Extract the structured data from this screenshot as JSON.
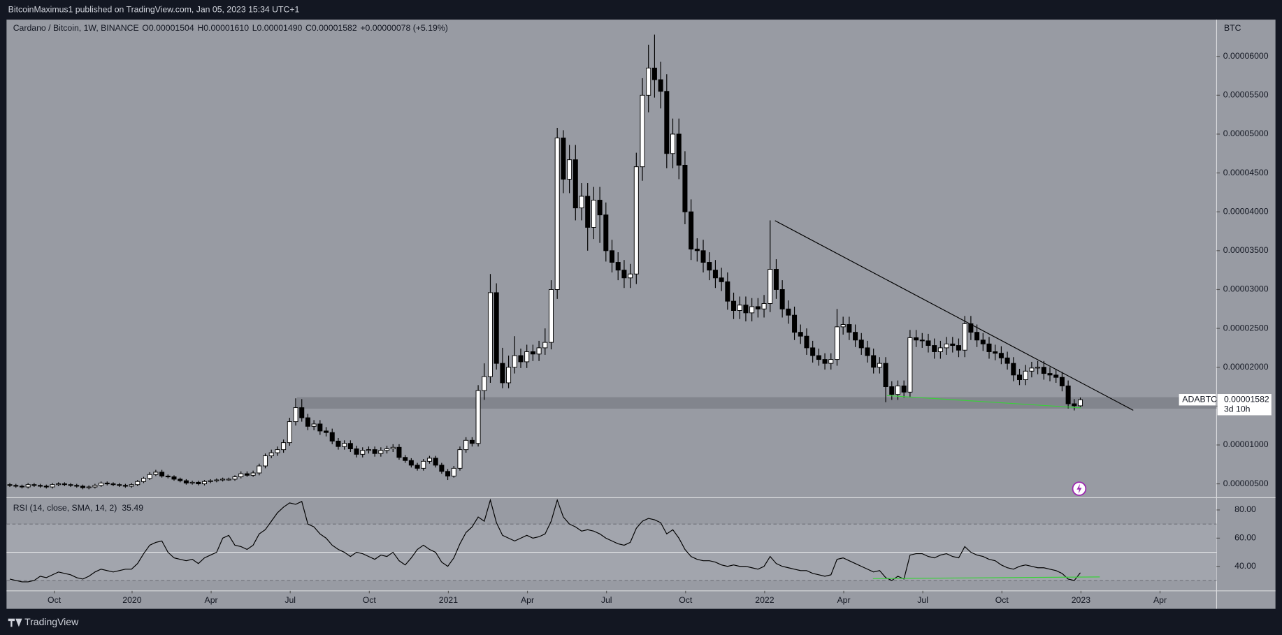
{
  "header": {
    "published": "BitcoinMaximus1 published on TradingView.com, Jan 05, 2023 15:34 UTC+1"
  },
  "footer": {
    "brand": "TradingView"
  },
  "chart_data": [
    {
      "type": "candlestick",
      "title": "Cardano / Bitcoin, 1W, BINANCE",
      "ohlc_legend": [
        {
          "label": "O",
          "value": "0.00001504"
        },
        {
          "label": "H",
          "value": "0.00001610"
        },
        {
          "label": "L",
          "value": "0.00001490"
        },
        {
          "label": "C",
          "value": "0.00001582"
        }
      ],
      "change": "+0.00000078 (+5.19%)",
      "unit": "BTC",
      "up_color": "#ffffff",
      "down_color": "#000000",
      "xlim": [
        -0.54,
        198.4
      ],
      "ylim": [
        3.32e-06,
        6.473e-05
      ],
      "yticks": [
        {
          "value": 5e-06,
          "label": "0.00000500"
        },
        {
          "value": 1e-05,
          "label": "0.00001000"
        },
        {
          "value": 1.5e-05,
          "label": "0.00001500"
        },
        {
          "value": 2e-05,
          "label": "0.00002000"
        },
        {
          "value": 2.5e-05,
          "label": "0.00002500"
        },
        {
          "value": 3e-05,
          "label": "0.00003000"
        },
        {
          "value": 3.5e-05,
          "label": "0.00003500"
        },
        {
          "value": 4e-05,
          "label": "0.00004000"
        },
        {
          "value": 4.5e-05,
          "label": "0.00004500"
        },
        {
          "value": 5e-05,
          "label": "0.00005000"
        },
        {
          "value": 5.5e-05,
          "label": "0.00005500"
        },
        {
          "value": 6e-05,
          "label": "0.00006000"
        }
      ],
      "open": [
        4.9e-06,
        4.8e-06,
        4.7e-06,
        4.6e-06,
        4.9e-06,
        4.8e-06,
        4.7e-06,
        4.6e-06,
        4.9e-06,
        5e-06,
        4.9e-06,
        4.8e-06,
        4.7e-06,
        4.5e-06,
        4.6e-06,
        4.8e-06,
        5.1e-06,
        5e-06,
        4.9e-06,
        4.8e-06,
        4.7e-06,
        4.9e-06,
        5.3e-06,
        5.7e-06,
        6.2e-06,
        6.5e-06,
        6e-06,
        5.9e-06,
        5.6e-06,
        5.4e-06,
        5.1e-06,
        5.2e-06,
        5e-06,
        5.3e-06,
        5.4e-06,
        5.5e-06,
        5.6e-06,
        5.6e-06,
        5.9e-06,
        6.3e-06,
        6.1e-06,
        6.4e-06,
        7.3e-06,
        8.6e-06,
        9e-06,
        9.4e-06,
        1.03e-05,
        1.3e-05,
        1.48e-05,
        1.35e-05,
        1.24e-05,
        1.27e-05,
        1.18e-05,
        1.16e-05,
        1.05e-05,
        9.8e-06,
        1.02e-05,
        9.5e-06,
        8.8e-06,
        9.3e-06,
        9.4e-06,
        8.9e-06,
        9.3e-06,
        9.5e-06,
        9.7e-06,
        8.4e-06,
        8e-06,
        7.4e-06,
        7e-06,
        7.9e-06,
        8.3e-06,
        7.4e-06,
        6.6e-06,
        6e-06,
        7e-06,
        9.4e-06,
        1.06e-05,
        1.02e-05,
        1.7e-05,
        1.88e-05,
        2.96e-05,
        2.05e-05,
        1.8e-05,
        2e-05,
        2.15e-05,
        2.07e-05,
        2.2e-05,
        2.17e-05,
        2.25e-05,
        2.32e-05,
        3e-05,
        4.95e-05,
        4.42e-05,
        4.67e-05,
        4.05e-05,
        4.2e-05,
        3.8e-05,
        4.15e-05,
        3.96e-05,
        3.5e-05,
        3.35e-05,
        3.25e-05,
        3.15e-05,
        3.2e-05,
        4.58e-05,
        5.5e-05,
        5.85e-05,
        5.7e-05,
        5.55e-05,
        4.75e-05,
        5e-05,
        4.6e-05,
        4e-05,
        3.52e-05,
        3.5e-05,
        3.35e-05,
        3.25e-05,
        3.15e-05,
        3.1e-05,
        2.85e-05,
        2.73e-05,
        2.8e-05,
        2.7e-05,
        2.78e-05,
        2.75e-05,
        2.82e-05,
        3.26e-05,
        3e-05,
        2.75e-05,
        2.67e-05,
        2.45e-05,
        2.4e-05,
        2.25e-05,
        2.15e-05,
        2.1e-05,
        2.05e-05,
        2.1e-05,
        2.52e-05,
        2.55e-05,
        2.45e-05,
        2.35e-05,
        2.25e-05,
        2.15e-05,
        2e-05,
        2.05e-05,
        1.75e-05,
        1.65e-05,
        1.76e-05,
        1.68e-05,
        2.38e-05,
        2.35e-05,
        2.34e-05,
        2.28e-05,
        2.2e-05,
        2.25e-05,
        2.3e-05,
        2.28e-05,
        2.22e-05,
        2.56e-05,
        2.45e-05,
        2.35e-05,
        2.3e-05,
        2.2e-05,
        2.18e-05,
        2.12e-05,
        2.05e-05,
        1.9e-05,
        1.84e-05,
        1.95e-05,
        1.99e-05,
        2e-05,
        1.92e-05,
        1.9e-05,
        1.87e-05,
        1.76e-05,
        1.53e-05,
        1.504e-05
      ],
      "high": [
        5.1e-06,
        5e-06,
        4.9e-06,
        5.1e-06,
        5.1e-06,
        5e-06,
        4.9e-06,
        5.1e-06,
        5.2e-06,
        5.2e-06,
        5.1e-06,
        5e-06,
        4.9e-06,
        4.8e-06,
        5e-06,
        5.3e-06,
        5.3e-06,
        5.2e-06,
        5.1e-06,
        5e-06,
        5.1e-06,
        5.5e-06,
        5.9e-06,
        6.5e-06,
        6.8e-06,
        6.8e-06,
        6.2e-06,
        6.1e-06,
        5.8e-06,
        5.6e-06,
        5.4e-06,
        5.4e-06,
        5.5e-06,
        5.6e-06,
        5.7e-06,
        5.8e-06,
        5.8e-06,
        6.1e-06,
        6.6e-06,
        6.6e-06,
        6.7e-06,
        7.6e-06,
        8.9e-06,
        9.4e-06,
        9.8e-06,
        1.07e-05,
        1.35e-05,
        1.6e-05,
        1.59e-05,
        1.4e-05,
        1.32e-05,
        1.32e-05,
        1.23e-05,
        1.21e-05,
        1.09e-05,
        1.06e-05,
        1.06e-05,
        9.9e-06,
        9.7e-06,
        9.8e-06,
        9.8e-06,
        9.7e-06,
        9.9e-06,
        1.01e-05,
        1.01e-05,
        8.7e-06,
        8.3e-06,
        7.7e-06,
        8.2e-06,
        8.6e-06,
        8.6e-06,
        7.7e-06,
        6.9e-06,
        7.3e-06,
        9.8e-06,
        1.1e-05,
        1.1e-05,
        1.77e-05,
        2.05e-05,
        3.2e-05,
        3.08e-05,
        2.25e-05,
        2.15e-05,
        2.4e-05,
        2.24e-05,
        2.29e-05,
        2.29e-05,
        2.34e-05,
        2.5e-05,
        3.12e-05,
        5.08e-05,
        5.05e-05,
        4.86e-05,
        4.86e-05,
        4.37e-05,
        4.37e-05,
        4.32e-05,
        4.32e-05,
        4.12e-05,
        3.64e-05,
        3.48e-05,
        3.38e-05,
        3.33e-05,
        4.76e-05,
        5.72e-05,
        6.15e-05,
        6.28e-05,
        5.93e-05,
        5.77e-05,
        5.2e-05,
        5.2e-05,
        4.78e-05,
        4.16e-05,
        3.66e-05,
        3.64e-05,
        3.48e-05,
        3.38e-05,
        3.28e-05,
        3.22e-05,
        2.96e-05,
        2.91e-05,
        2.91e-05,
        2.89e-05,
        2.89e-05,
        2.93e-05,
        3.89e-05,
        3.39e-05,
        3.12e-05,
        2.86e-05,
        2.78e-05,
        2.55e-05,
        2.5e-05,
        2.34e-05,
        2.24e-05,
        2.18e-05,
        2.18e-05,
        2.75e-05,
        2.65e-05,
        2.65e-05,
        2.55e-05,
        2.44e-05,
        2.34e-05,
        2.24e-05,
        2.13e-05,
        2.13e-05,
        1.82e-05,
        1.83e-05,
        1.83e-05,
        2.48e-05,
        2.48e-05,
        2.44e-05,
        2.43e-05,
        2.37e-05,
        2.34e-05,
        2.39e-05,
        2.39e-05,
        2.37e-05,
        2.66e-05,
        2.66e-05,
        2.55e-05,
        2.44e-05,
        2.39e-05,
        2.29e-05,
        2.27e-05,
        2.2e-05,
        2.13e-05,
        1.98e-05,
        2.03e-05,
        2.07e-05,
        2.08e-05,
        2.08e-05,
        2e-05,
        1.98e-05,
        1.94e-05,
        1.83e-05,
        1.59e-05,
        1.61e-05
      ],
      "low": [
        4.6e-06,
        4.5e-06,
        4.4e-06,
        4.4e-06,
        4.6e-06,
        4.5e-06,
        4.4e-06,
        4.4e-06,
        4.7e-06,
        4.7e-06,
        4.6e-06,
        4.5e-06,
        4.3e-06,
        4.3e-06,
        4.4e-06,
        4.6e-06,
        4.8e-06,
        4.7e-06,
        4.6e-06,
        4.5e-06,
        4.5e-06,
        4.7e-06,
        5.1e-06,
        5.5e-06,
        6e-06,
        5.8e-06,
        5.7e-06,
        5.4e-06,
        5.2e-06,
        4.9e-06,
        4.9e-06,
        4.8e-06,
        4.8e-06,
        5.1e-06,
        5.2e-06,
        5.3e-06,
        5.4e-06,
        5.4e-06,
        5.7e-06,
        5.9e-06,
        5.9e-06,
        6.1e-06,
        7e-06,
        8.3e-06,
        8.6e-06,
        9e-06,
        9.9e-06,
        1.25e-05,
        1.3e-05,
        1.19e-05,
        1.19e-05,
        1.13e-05,
        1.11e-05,
        1.01e-05,
        9.4e-06,
        9.4e-06,
        9.1e-06,
        8.4e-06,
        8.4e-06,
        8.9e-06,
        8.5e-06,
        8.5e-06,
        8.9e-06,
        9.1e-06,
        8.1e-06,
        7.7e-06,
        7.1e-06,
        6.7e-06,
        6.7e-06,
        7.6e-06,
        7.1e-06,
        6.3e-06,
        5.5e-06,
        5.8e-06,
        6.7e-06,
        9e-06,
        9.8e-06,
        9.8e-06,
        1.58e-05,
        1.8e-05,
        1.97e-05,
        1.73e-05,
        1.73e-05,
        1.92e-05,
        1.99e-05,
        1.99e-05,
        2.08e-05,
        2.08e-05,
        2.16e-05,
        2.23e-05,
        2.88e-05,
        4.24e-05,
        4.24e-05,
        3.89e-05,
        3.89e-05,
        3.5e-05,
        3.65e-05,
        3.6e-05,
        3.36e-05,
        3.22e-05,
        3.12e-05,
        3.02e-05,
        3.02e-05,
        3.07e-05,
        4.4e-05,
        5.28e-05,
        5.47e-05,
        5.33e-05,
        4.56e-05,
        4.56e-05,
        4.42e-05,
        3.84e-05,
        3.38e-05,
        3.36e-05,
        3.22e-05,
        3.12e-05,
        3.02e-05,
        2.98e-05,
        2.74e-05,
        2.62e-05,
        2.62e-05,
        2.59e-05,
        2.59e-05,
        2.64e-05,
        2.64e-05,
        2.71e-05,
        2.88e-05,
        2.64e-05,
        2.56e-05,
        2.35e-05,
        2.3e-05,
        2.16e-05,
        2.06e-05,
        2.02e-05,
        1.97e-05,
        1.97e-05,
        2.02e-05,
        2.42e-05,
        2.35e-05,
        2.26e-05,
        2.16e-05,
        2.06e-05,
        1.92e-05,
        1.92e-05,
        1.55e-05,
        1.58e-05,
        1.58e-05,
        1.61e-05,
        1.61e-05,
        2.26e-05,
        2.25e-05,
        2.19e-05,
        2.11e-05,
        2.11e-05,
        2.16e-05,
        2.19e-05,
        2.13e-05,
        2.13e-05,
        2.35e-05,
        2.26e-05,
        2.21e-05,
        2.11e-05,
        2.09e-05,
        2.04e-05,
        1.97e-05,
        1.82e-05,
        1.77e-05,
        1.77e-05,
        1.87e-05,
        1.91e-05,
        1.84e-05,
        1.82e-05,
        1.8e-05,
        1.69e-05,
        1.47e-05,
        1.444e-05,
        1.49e-05
      ],
      "close": [
        4.8e-06,
        4.7e-06,
        4.6e-06,
        4.9e-06,
        4.8e-06,
        4.7e-06,
        4.6e-06,
        4.9e-06,
        5e-06,
        4.9e-06,
        4.8e-06,
        4.7e-06,
        4.5e-06,
        4.6e-06,
        4.8e-06,
        5.1e-06,
        5e-06,
        4.9e-06,
        4.8e-06,
        4.7e-06,
        4.9e-06,
        5.3e-06,
        5.7e-06,
        6.2e-06,
        6.5e-06,
        6e-06,
        5.9e-06,
        5.6e-06,
        5.4e-06,
        5.1e-06,
        5.2e-06,
        5e-06,
        5.3e-06,
        5.4e-06,
        5.5e-06,
        5.6e-06,
        5.6e-06,
        5.9e-06,
        6.3e-06,
        6.1e-06,
        6.4e-06,
        7.3e-06,
        8.6e-06,
        9e-06,
        9.4e-06,
        1.03e-05,
        1.3e-05,
        1.48e-05,
        1.35e-05,
        1.24e-05,
        1.27e-05,
        1.18e-05,
        1.16e-05,
        1.05e-05,
        9.8e-06,
        1.02e-05,
        9.5e-06,
        8.8e-06,
        9.3e-06,
        9.4e-06,
        8.9e-06,
        9.3e-06,
        9.5e-06,
        9.7e-06,
        8.4e-06,
        8e-06,
        7.4e-06,
        7e-06,
        7.9e-06,
        8.3e-06,
        7.4e-06,
        6.6e-06,
        6e-06,
        7e-06,
        9.4e-06,
        1.06e-05,
        1.02e-05,
        1.7e-05,
        1.88e-05,
        2.96e-05,
        2.05e-05,
        1.8e-05,
        2e-05,
        2.15e-05,
        2.07e-05,
        2.2e-05,
        2.17e-05,
        2.25e-05,
        2.32e-05,
        3e-05,
        4.95e-05,
        4.42e-05,
        4.67e-05,
        4.05e-05,
        4.2e-05,
        3.8e-05,
        4.15e-05,
        3.96e-05,
        3.5e-05,
        3.35e-05,
        3.25e-05,
        3.15e-05,
        3.2e-05,
        4.58e-05,
        5.5e-05,
        5.85e-05,
        5.7e-05,
        5.55e-05,
        4.75e-05,
        5e-05,
        4.6e-05,
        4e-05,
        3.52e-05,
        3.5e-05,
        3.35e-05,
        3.25e-05,
        3.15e-05,
        3.1e-05,
        2.85e-05,
        2.73e-05,
        2.8e-05,
        2.7e-05,
        2.78e-05,
        2.75e-05,
        2.82e-05,
        3.26e-05,
        3e-05,
        2.75e-05,
        2.67e-05,
        2.45e-05,
        2.4e-05,
        2.25e-05,
        2.15e-05,
        2.1e-05,
        2.05e-05,
        2.1e-05,
        2.52e-05,
        2.55e-05,
        2.45e-05,
        2.35e-05,
        2.25e-05,
        2.15e-05,
        2e-05,
        2.05e-05,
        1.75e-05,
        1.65e-05,
        1.76e-05,
        1.68e-05,
        2.38e-05,
        2.35e-05,
        2.34e-05,
        2.28e-05,
        2.2e-05,
        2.25e-05,
        2.3e-05,
        2.28e-05,
        2.22e-05,
        2.56e-05,
        2.45e-05,
        2.35e-05,
        2.3e-05,
        2.2e-05,
        2.18e-05,
        2.12e-05,
        2.05e-05,
        1.9e-05,
        1.84e-05,
        1.95e-05,
        1.99e-05,
        2e-05,
        1.92e-05,
        1.9e-05,
        1.87e-05,
        1.76e-05,
        1.53e-05,
        1.504e-05,
        1.582e-05
      ],
      "zone": {
        "x0": 47.2,
        "y": [
          1.467e-05,
          1.615e-05
        ],
        "color": "#7e8189"
      },
      "trendlines": [
        {
          "color": "#000000",
          "x": [
            125.8,
            184.7
          ],
          "y": [
            3.886e-05,
            1.446e-05
          ]
        },
        {
          "color": "#3ad13a",
          "x": [
            144.2,
            176.1
          ],
          "y": [
            1.636e-05,
            1.478e-05
          ]
        }
      ],
      "last_price_label": {
        "symbol": "ADABTC",
        "price": "0.00001582",
        "countdown": "3d 10h"
      }
    },
    {
      "type": "line",
      "title": "RSI (14, close, SMA, 14, 2)",
      "color": "#000000",
      "xlim": [
        -0.54,
        198.4
      ],
      "ylim": [
        23.2,
        88.1
      ],
      "yticks": [
        {
          "value": 40,
          "label": "40.00"
        },
        {
          "value": 60,
          "label": "60.00"
        },
        {
          "value": 80,
          "label": "80.00"
        }
      ],
      "bands": [
        30,
        50,
        70
      ],
      "xticks": [
        {
          "value": 7.3,
          "label": "Oct"
        },
        {
          "value": 20.1,
          "label": "2020"
        },
        {
          "value": 33.1,
          "label": "Apr"
        },
        {
          "value": 46.1,
          "label": "Jul"
        },
        {
          "value": 59.1,
          "label": "Oct"
        },
        {
          "value": 72.1,
          "label": "2021"
        },
        {
          "value": 85.1,
          "label": "Apr"
        },
        {
          "value": 98.1,
          "label": "Jul"
        },
        {
          "value": 111.1,
          "label": "Oct"
        },
        {
          "value": 124.1,
          "label": "2022"
        },
        {
          "value": 137.1,
          "label": "Apr"
        },
        {
          "value": 150.1,
          "label": "Jul"
        },
        {
          "value": 163.1,
          "label": "Oct"
        },
        {
          "value": 176.1,
          "label": "2023"
        },
        {
          "value": 189.1,
          "label": "Apr"
        }
      ],
      "values": [
        31,
        30,
        29,
        29,
        30,
        33,
        32,
        34,
        36,
        35,
        34,
        32,
        31,
        33,
        36,
        38,
        37,
        36,
        37,
        38,
        38,
        42,
        49,
        55,
        57,
        58,
        50,
        46,
        45,
        44,
        45,
        42,
        46,
        48,
        50,
        60,
        62,
        55,
        54,
        52,
        55,
        63,
        66,
        72,
        78,
        82,
        85,
        84,
        86,
        70,
        68,
        63,
        60,
        55,
        52,
        50,
        47,
        50,
        49,
        47,
        45,
        48,
        47,
        50,
        44,
        41,
        46,
        52,
        55,
        52,
        50,
        43,
        40,
        46,
        56,
        64,
        68,
        75,
        72,
        87,
        71,
        62,
        60,
        58,
        60,
        62,
        60,
        61,
        63,
        72,
        87,
        75,
        70,
        68,
        65,
        66,
        65,
        63,
        60,
        58,
        56,
        55,
        57,
        67,
        72,
        74,
        73,
        71,
        63,
        66,
        60,
        52,
        47,
        45,
        44,
        44,
        43,
        41,
        40,
        41,
        40,
        40,
        39,
        38,
        40,
        47,
        42,
        40,
        39,
        38,
        37,
        37,
        35,
        34,
        33,
        34,
        45,
        46,
        44,
        42,
        40,
        38,
        36,
        37,
        32,
        30,
        33,
        31,
        48,
        49,
        49,
        47,
        46,
        48,
        49,
        47,
        46,
        54,
        50,
        48,
        47,
        45,
        44,
        41,
        39,
        38,
        40,
        41,
        40,
        39,
        39,
        38,
        37,
        35,
        31,
        30,
        35.49
      ],
      "trendlines": [
        {
          "color": "#3ad13a",
          "x": [
            141.9,
            179.2
          ],
          "y": [
            31.3,
            32.5
          ]
        }
      ]
    }
  ]
}
